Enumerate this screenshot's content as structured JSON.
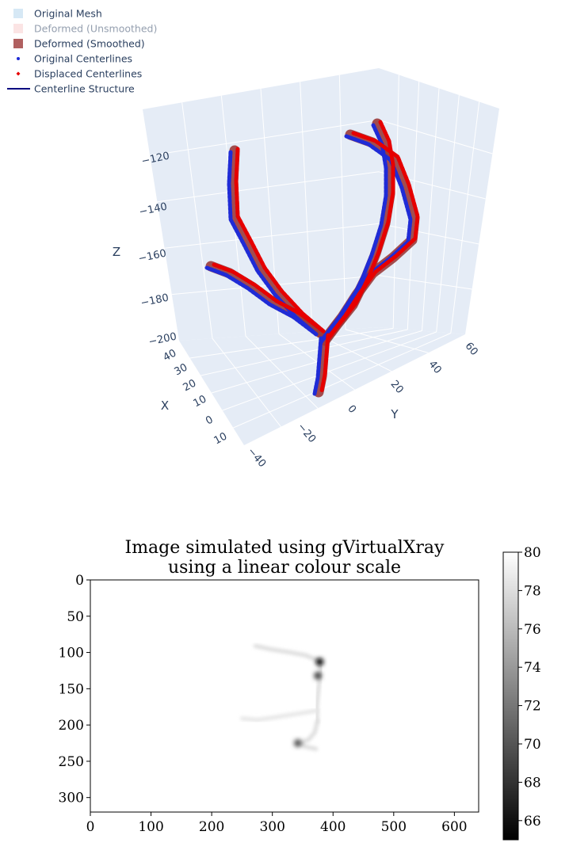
{
  "colors": {
    "scene_bg": "#e5ecf6",
    "grid": "#ffffff",
    "label_text": "#2a3f5f",
    "original_centerline": "#1f2bd6",
    "displaced_centerline": "#e60000",
    "mesh_original": "#d6e8f5",
    "mesh_unsmoothed": "#f7c9c9",
    "mesh_smoothed": "#9a3b3b",
    "centerline_structure": "#000080"
  },
  "chart_data": [
    {
      "type": "scatter3d",
      "legend": [
        {
          "label": "Original Mesh",
          "symbol": "square",
          "color": "#d6e8f5",
          "active": true
        },
        {
          "label": "Deformed (Unsmoothed)",
          "symbol": "square",
          "color": "#f7c9c9",
          "active": false
        },
        {
          "label": "Deformed (Smoothed)",
          "symbol": "square",
          "color": "#b06060",
          "active": true
        },
        {
          "label": "Original Centerlines",
          "symbol": "dot",
          "color": "#1f2bd6",
          "active": true
        },
        {
          "label": "Displaced Centerlines",
          "symbol": "diamond",
          "color": "#e60000",
          "active": true
        },
        {
          "label": "Centerline Structure",
          "symbol": "line",
          "color": "#000080",
          "active": true
        }
      ],
      "axes": {
        "x": {
          "title": "X",
          "ticks": [
            "40",
            "30",
            "20",
            "10",
            "0",
            "10"
          ],
          "tick_values": [
            -40,
            -30,
            -20,
            -10,
            0,
            10
          ]
        },
        "y": {
          "title": "Y",
          "ticks": [
            "−40",
            "−20",
            "0",
            "20",
            "40",
            "60"
          ],
          "tick_values": [
            -40,
            -20,
            0,
            20,
            40,
            60
          ]
        },
        "z": {
          "title": "Z",
          "ticks": [
            "−120",
            "−140",
            "−160",
            "−180",
            "−200"
          ],
          "tick_values": [
            -120,
            -140,
            -160,
            -180,
            -200
          ]
        }
      },
      "grid": true
    },
    {
      "type": "heatmap",
      "title": "Image simulated using gVirtualXray\nusing a linear colour scale",
      "title_lines": [
        "Image simulated using gVirtualXray",
        "using a linear colour scale"
      ],
      "xlim": [
        0,
        640
      ],
      "ylim": [
        320,
        0
      ],
      "xticks": [
        0,
        100,
        200,
        300,
        400,
        500,
        600
      ],
      "yticks": [
        0,
        50,
        100,
        150,
        200,
        250,
        300
      ],
      "colormap": "gray",
      "colorbar": {
        "min": 65,
        "max": 80,
        "ticks": [
          66,
          68,
          70,
          72,
          74,
          76,
          78,
          80
        ]
      },
      "features": [
        {
          "kind": "vessel",
          "points": [
            [
              272,
              91
            ],
            [
              300,
              96
            ],
            [
              330,
              100
            ],
            [
              355,
              104
            ],
            [
              378,
              112
            ]
          ],
          "value": 78
        },
        {
          "kind": "vessel",
          "points": [
            [
              378,
              112
            ],
            [
              380,
              125
            ],
            [
              376,
              150
            ],
            [
              373,
              175
            ],
            [
              374,
              195
            ]
          ],
          "value": 78
        },
        {
          "kind": "vessel",
          "points": [
            [
              250,
              191
            ],
            [
              275,
              193
            ],
            [
              300,
              190
            ],
            [
              330,
              186
            ],
            [
              360,
              182
            ],
            [
              374,
              180
            ]
          ],
          "value": 78.5
        },
        {
          "kind": "vessel",
          "points": [
            [
              374,
              195
            ],
            [
              370,
              210
            ],
            [
              360,
              220
            ],
            [
              345,
              225
            ],
            [
              355,
              230
            ],
            [
              372,
              233
            ]
          ],
          "value": 78
        },
        {
          "kind": "blob",
          "x": 378,
          "y": 113,
          "value": 65.5
        },
        {
          "kind": "blob",
          "x": 375,
          "y": 132,
          "value": 69
        },
        {
          "kind": "blob",
          "x": 342,
          "y": 225,
          "value": 70
        }
      ]
    }
  ]
}
